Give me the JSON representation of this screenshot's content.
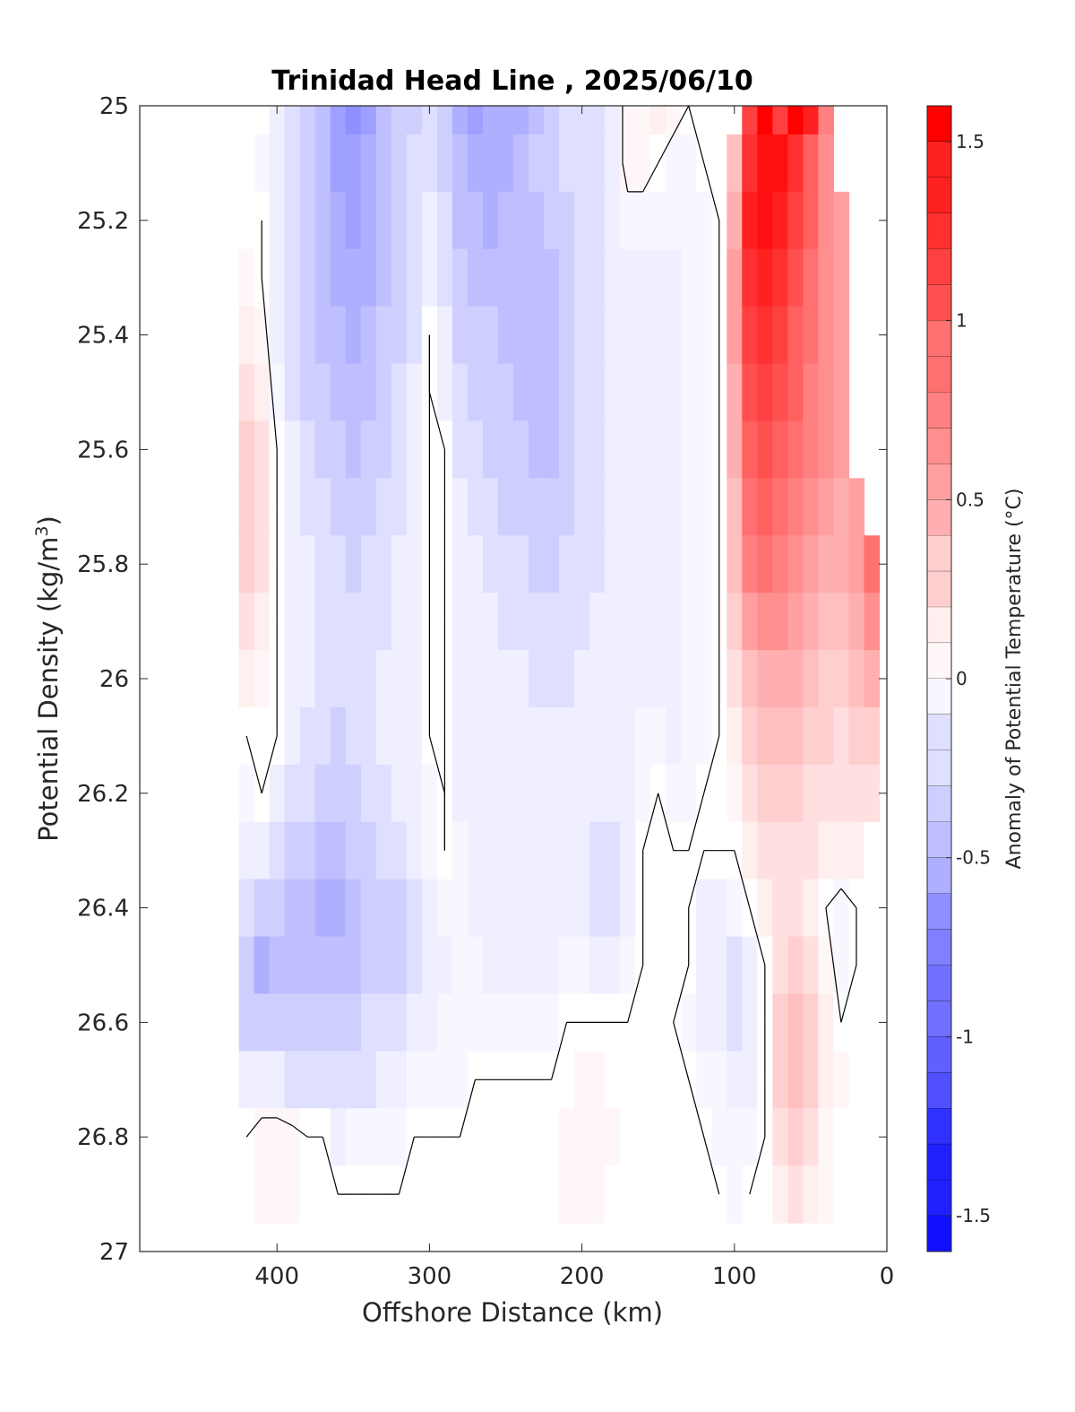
{
  "chart_data": {
    "type": "heatmap",
    "subtype": "filled contour section",
    "title": "Trinidad Head Line , 2025/06/10",
    "xlabel": "Offshore Distance (km)",
    "ylabel": "Potential Density (kg/m",
    "ylabel_sup": "3",
    "ylabel_end": ")",
    "colorbar_label": "Anomaly of Potential Temperature (°C)",
    "xlim": [
      490,
      0
    ],
    "x_reversed": true,
    "ylim": [
      25,
      27
    ],
    "y_reversed": true,
    "x_ticks": [
      400,
      300,
      200,
      100,
      0
    ],
    "y_ticks": [
      25,
      25.2,
      25.4,
      25.6,
      25.8,
      26,
      26.2,
      26.4,
      26.6,
      26.8,
      27
    ],
    "x_tick_labels": [
      "400",
      "300",
      "200",
      "100",
      "0"
    ],
    "y_tick_labels": [
      "25",
      "25.2",
      "25.4",
      "25.6",
      "25.8",
      "26",
      "26.2",
      "26.4",
      "26.6",
      "26.8",
      "27"
    ],
    "clim": [
      -1.6,
      1.6
    ],
    "contour_step": 0.1,
    "colorbar_ticks": [
      1.5,
      1,
      0.5,
      0,
      -0.5,
      -1,
      -1.5
    ],
    "colorbar_tick_labels": [
      "1.5",
      "1",
      "0.5",
      "0",
      "-0.5",
      "-1",
      "-1.5"
    ],
    "colormap": "blue-white-red",
    "colors": {
      "negative": "#0000ff",
      "zero": "#ffffff",
      "positive": "#ff0000"
    },
    "data_extent": {
      "x": [
        420,
        10
      ],
      "y": [
        25,
        26.9
      ]
    },
    "grid": false,
    "zero_contour_lines": true,
    "grid_x_km": [
      420,
      410,
      400,
      390,
      380,
      370,
      360,
      350,
      340,
      330,
      320,
      310,
      300,
      290,
      280,
      270,
      260,
      250,
      240,
      230,
      220,
      210,
      200,
      190,
      180,
      170,
      160,
      150,
      140,
      130,
      120,
      110,
      100,
      90,
      80,
      70,
      60,
      50,
      40,
      30,
      20,
      10
    ],
    "grid_y_density": [
      25.0,
      25.1,
      25.2,
      25.3,
      25.4,
      25.5,
      25.6,
      25.7,
      25.8,
      25.9,
      26.0,
      26.1,
      26.2,
      26.3,
      26.4,
      26.5,
      26.6,
      26.7,
      26.8,
      26.9
    ],
    "anomaly_values": [
      [
        null,
        null,
        -0.1,
        -0.2,
        -0.3,
        -0.4,
        -0.6,
        -0.7,
        -0.6,
        -0.4,
        -0.3,
        -0.3,
        -0.2,
        -0.3,
        -0.5,
        -0.6,
        -0.5,
        -0.5,
        -0.5,
        -0.4,
        -0.3,
        -0.2,
        -0.2,
        -0.2,
        -0.1,
        0.05,
        0.05,
        0.1,
        0.05,
        0.0,
        0.0,
        0.0,
        0.0,
        1.2,
        1.6,
        1.2,
        1.6,
        1.4,
        0.8,
        null,
        null,
        null
      ],
      [
        null,
        -0.05,
        -0.1,
        -0.2,
        -0.3,
        -0.4,
        -0.6,
        -0.6,
        -0.5,
        -0.4,
        -0.3,
        -0.2,
        -0.2,
        -0.3,
        -0.4,
        -0.5,
        -0.5,
        -0.5,
        -0.4,
        -0.3,
        -0.3,
        -0.2,
        -0.2,
        -0.2,
        -0.1,
        0.05,
        0.05,
        0.0,
        -0.05,
        -0.05,
        0.0,
        0.0,
        0.4,
        1.3,
        1.5,
        1.5,
        1.3,
        1.0,
        0.7,
        null,
        null,
        null
      ],
      [
        0.0,
        0.0,
        -0.1,
        -0.2,
        -0.3,
        -0.4,
        -0.5,
        -0.6,
        -0.5,
        -0.4,
        -0.3,
        -0.2,
        -0.1,
        -0.2,
        -0.4,
        -0.4,
        -0.5,
        -0.4,
        -0.4,
        -0.4,
        -0.3,
        -0.3,
        -0.2,
        -0.2,
        -0.1,
        -0.05,
        -0.05,
        -0.05,
        -0.05,
        -0.05,
        -0.05,
        0.0,
        0.5,
        1.4,
        1.5,
        1.4,
        1.2,
        1.0,
        0.7,
        0.6,
        null,
        null
      ],
      [
        0.05,
        0.0,
        -0.1,
        -0.2,
        -0.3,
        -0.4,
        -0.5,
        -0.5,
        -0.5,
        -0.4,
        -0.3,
        -0.2,
        -0.1,
        -0.2,
        -0.3,
        -0.4,
        -0.4,
        -0.4,
        -0.4,
        -0.4,
        -0.4,
        -0.3,
        -0.2,
        -0.2,
        -0.1,
        -0.1,
        -0.1,
        -0.1,
        -0.1,
        -0.05,
        -0.05,
        0.0,
        0.6,
        1.3,
        1.4,
        1.3,
        1.1,
        0.9,
        0.7,
        0.6,
        null,
        null
      ],
      [
        0.1,
        0.05,
        -0.1,
        -0.2,
        -0.3,
        -0.4,
        -0.4,
        -0.5,
        -0.4,
        -0.3,
        -0.3,
        -0.2,
        0.0,
        -0.1,
        -0.3,
        -0.3,
        -0.3,
        -0.4,
        -0.4,
        -0.4,
        -0.4,
        -0.3,
        -0.2,
        -0.2,
        -0.1,
        -0.1,
        -0.1,
        -0.1,
        -0.1,
        -0.05,
        -0.05,
        0.0,
        0.6,
        1.2,
        1.3,
        1.2,
        1.0,
        0.9,
        0.7,
        0.6,
        null,
        null
      ],
      [
        0.2,
        0.1,
        -0.05,
        -0.2,
        -0.3,
        -0.3,
        -0.4,
        -0.4,
        -0.4,
        -0.3,
        -0.2,
        -0.1,
        0.0,
        -0.1,
        -0.2,
        -0.3,
        -0.3,
        -0.3,
        -0.4,
        -0.4,
        -0.4,
        -0.3,
        -0.2,
        -0.2,
        -0.1,
        -0.1,
        -0.1,
        -0.1,
        -0.1,
        -0.05,
        -0.05,
        0.0,
        0.5,
        1.1,
        1.2,
        1.1,
        1.0,
        0.8,
        0.7,
        0.6,
        null,
        null
      ],
      [
        0.3,
        0.2,
        0.0,
        -0.1,
        -0.2,
        -0.3,
        -0.3,
        -0.4,
        -0.3,
        -0.3,
        -0.2,
        -0.1,
        0.0,
        0.0,
        -0.2,
        -0.2,
        -0.3,
        -0.3,
        -0.3,
        -0.4,
        -0.4,
        -0.3,
        -0.2,
        -0.2,
        -0.1,
        -0.1,
        -0.1,
        -0.1,
        -0.1,
        -0.05,
        -0.05,
        0.0,
        0.5,
        1.0,
        1.1,
        1.0,
        0.9,
        0.8,
        0.7,
        0.6,
        null,
        null
      ],
      [
        0.3,
        0.2,
        0.0,
        -0.1,
        -0.2,
        -0.2,
        -0.3,
        -0.3,
        -0.3,
        -0.2,
        -0.2,
        -0.1,
        0.0,
        0.0,
        -0.1,
        -0.2,
        -0.2,
        -0.3,
        -0.3,
        -0.3,
        -0.3,
        -0.3,
        -0.2,
        -0.2,
        -0.1,
        -0.1,
        -0.1,
        -0.1,
        -0.1,
        -0.05,
        -0.05,
        0.0,
        0.4,
        0.9,
        1.0,
        0.9,
        0.8,
        0.7,
        0.6,
        0.5,
        0.6,
        null
      ],
      [
        0.3,
        0.2,
        0.0,
        -0.1,
        -0.1,
        -0.2,
        -0.2,
        -0.3,
        -0.2,
        -0.2,
        -0.1,
        -0.1,
        0.0,
        0.0,
        -0.1,
        -0.1,
        -0.2,
        -0.2,
        -0.2,
        -0.3,
        -0.3,
        -0.2,
        -0.2,
        -0.2,
        -0.1,
        -0.1,
        -0.1,
        -0.1,
        -0.1,
        -0.05,
        -0.05,
        0.0,
        0.4,
        0.8,
        0.9,
        0.8,
        0.7,
        0.6,
        0.5,
        0.5,
        0.6,
        0.9
      ],
      [
        0.2,
        0.1,
        0.0,
        -0.1,
        -0.1,
        -0.2,
        -0.2,
        -0.2,
        -0.2,
        -0.2,
        -0.1,
        -0.1,
        0.0,
        0.0,
        -0.1,
        -0.1,
        -0.1,
        -0.2,
        -0.2,
        -0.2,
        -0.2,
        -0.2,
        -0.2,
        -0.1,
        -0.1,
        -0.1,
        -0.1,
        -0.1,
        -0.1,
        -0.05,
        -0.05,
        0.0,
        0.3,
        0.6,
        0.7,
        0.7,
        0.6,
        0.5,
        0.4,
        0.4,
        0.5,
        0.7
      ],
      [
        0.1,
        0.05,
        0.0,
        -0.1,
        -0.1,
        -0.2,
        -0.2,
        -0.2,
        -0.2,
        -0.1,
        -0.1,
        -0.1,
        0.0,
        0.0,
        -0.1,
        -0.1,
        -0.1,
        -0.1,
        -0.1,
        -0.2,
        -0.2,
        -0.2,
        -0.1,
        -0.1,
        -0.1,
        -0.1,
        -0.1,
        -0.1,
        -0.1,
        -0.05,
        -0.05,
        0.0,
        0.2,
        0.4,
        0.5,
        0.5,
        0.5,
        0.4,
        0.3,
        0.3,
        0.4,
        0.5
      ],
      [
        0.0,
        0.0,
        0.0,
        -0.1,
        -0.2,
        -0.2,
        -0.3,
        -0.2,
        -0.2,
        -0.1,
        -0.1,
        -0.1,
        0.0,
        0.0,
        -0.1,
        -0.1,
        -0.1,
        -0.1,
        -0.1,
        -0.1,
        -0.1,
        -0.1,
        -0.1,
        -0.1,
        -0.1,
        -0.1,
        -0.05,
        -0.05,
        -0.1,
        -0.05,
        -0.05,
        0.0,
        0.1,
        0.3,
        0.4,
        0.4,
        0.4,
        0.3,
        0.3,
        0.2,
        0.3,
        0.3
      ],
      [
        -0.05,
        0.0,
        -0.1,
        -0.2,
        -0.2,
        -0.3,
        -0.3,
        -0.3,
        -0.2,
        -0.2,
        -0.1,
        -0.1,
        -0.05,
        0.0,
        -0.1,
        -0.1,
        -0.1,
        -0.1,
        -0.1,
        -0.1,
        -0.1,
        -0.1,
        -0.1,
        -0.1,
        -0.1,
        -0.1,
        -0.05,
        0.0,
        -0.05,
        -0.05,
        0.0,
        0.0,
        0.05,
        0.2,
        0.3,
        0.3,
        0.3,
        0.2,
        0.2,
        0.2,
        0.2,
        0.2
      ],
      [
        -0.1,
        -0.1,
        -0.2,
        -0.3,
        -0.3,
        -0.4,
        -0.4,
        -0.3,
        -0.3,
        -0.2,
        -0.2,
        -0.1,
        -0.05,
        0.0,
        -0.05,
        -0.1,
        -0.1,
        -0.1,
        -0.1,
        -0.1,
        -0.1,
        -0.1,
        -0.1,
        -0.2,
        -0.2,
        -0.1,
        0.0,
        0.0,
        0.0,
        0.0,
        0.0,
        0.0,
        0.0,
        0.1,
        0.2,
        0.2,
        0.2,
        0.2,
        0.1,
        0.1,
        0.1,
        0.0
      ],
      [
        -0.2,
        -0.3,
        -0.3,
        -0.4,
        -0.4,
        -0.5,
        -0.5,
        -0.4,
        -0.3,
        -0.3,
        -0.3,
        -0.2,
        -0.1,
        -0.05,
        -0.05,
        -0.1,
        -0.1,
        -0.1,
        -0.1,
        -0.1,
        -0.1,
        -0.1,
        -0.1,
        -0.2,
        -0.2,
        -0.1,
        0.0,
        0.0,
        0.0,
        0.0,
        -0.1,
        -0.1,
        -0.05,
        0.0,
        0.1,
        0.2,
        0.2,
        0.1,
        0.0,
        -0.05,
        0.0,
        0.0
      ],
      [
        -0.3,
        -0.5,
        -0.4,
        -0.4,
        -0.4,
        -0.4,
        -0.4,
        -0.4,
        -0.3,
        -0.3,
        -0.3,
        -0.2,
        -0.1,
        -0.1,
        -0.05,
        -0.05,
        -0.1,
        -0.1,
        -0.1,
        -0.1,
        -0.1,
        -0.05,
        -0.05,
        -0.1,
        -0.1,
        -0.05,
        0.0,
        0.0,
        0.0,
        0.0,
        -0.1,
        -0.1,
        -0.2,
        -0.1,
        0.0,
        0.2,
        0.3,
        0.2,
        0.05,
        -0.05,
        0.0,
        0.0
      ],
      [
        -0.3,
        -0.3,
        -0.3,
        -0.3,
        -0.3,
        -0.3,
        -0.3,
        -0.3,
        -0.2,
        -0.2,
        -0.2,
        -0.1,
        -0.1,
        -0.05,
        -0.05,
        -0.05,
        -0.05,
        -0.05,
        -0.05,
        -0.05,
        -0.05,
        0.0,
        0.0,
        0.0,
        0.0,
        0.0,
        0.0,
        0.0,
        0.0,
        -0.05,
        -0.1,
        -0.1,
        -0.2,
        -0.1,
        0.0,
        0.3,
        0.4,
        0.3,
        0.1,
        0.0,
        0.0,
        null
      ],
      [
        -0.1,
        -0.1,
        -0.1,
        -0.2,
        -0.2,
        -0.2,
        -0.2,
        -0.2,
        -0.2,
        -0.1,
        -0.1,
        -0.05,
        -0.05,
        -0.05,
        -0.05,
        0.0,
        0.0,
        0.0,
        0.0,
        0.0,
        0.0,
        0.0,
        0.05,
        0.05,
        0.0,
        0.0,
        0.0,
        0.0,
        0.0,
        0.0,
        -0.05,
        -0.05,
        -0.1,
        -0.1,
        0.0,
        0.3,
        0.4,
        0.3,
        0.1,
        0.05,
        null,
        null
      ],
      [
        0.0,
        0.05,
        0.05,
        0.05,
        0.0,
        0.0,
        -0.1,
        -0.05,
        -0.05,
        -0.05,
        -0.05,
        0.0,
        0.0,
        0.0,
        0.0,
        0.0,
        0.0,
        0.0,
        0.0,
        0.0,
        0.0,
        0.05,
        0.05,
        0.05,
        0.05,
        0.0,
        0.0,
        0.0,
        0.0,
        0.0,
        0.0,
        -0.05,
        -0.05,
        -0.05,
        0.0,
        0.2,
        0.3,
        0.2,
        0.05,
        0.0,
        null,
        null
      ],
      [
        0.0,
        0.05,
        0.05,
        0.05,
        0.0,
        0.0,
        0.0,
        0.0,
        0.0,
        0.0,
        0.0,
        0.0,
        0.0,
        0.0,
        0.0,
        0.0,
        0.0,
        0.0,
        0.0,
        0.0,
        0.0,
        0.05,
        0.05,
        0.05,
        0.0,
        0.0,
        0.0,
        0.0,
        0.0,
        0.0,
        0.0,
        0.0,
        -0.05,
        0.0,
        0.0,
        0.1,
        0.2,
        0.1,
        0.05,
        0.0,
        null,
        null
      ]
    ]
  }
}
